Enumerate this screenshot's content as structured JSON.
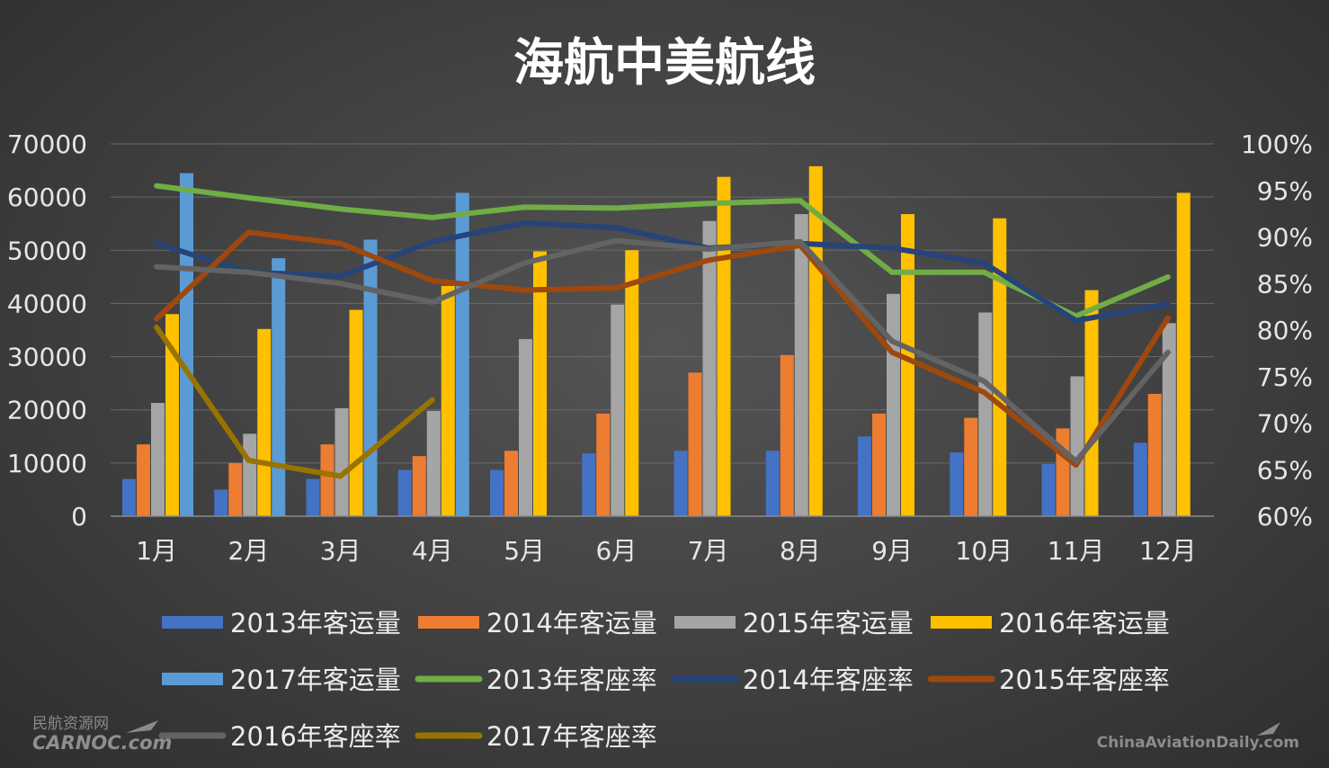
{
  "chart_data": {
    "type": "bar",
    "title": "海航中美航线",
    "categories": [
      "1月",
      "2月",
      "3月",
      "4月",
      "5月",
      "6月",
      "7月",
      "8月",
      "9月",
      "10月",
      "11月",
      "12月"
    ],
    "y_left": {
      "ylim": [
        0,
        70000
      ],
      "ticks": [
        "0",
        "10000",
        "20000",
        "30000",
        "40000",
        "50000",
        "60000",
        "70000"
      ]
    },
    "y_right": {
      "ylim": [
        0.6,
        1.0
      ],
      "ticks": [
        "60%",
        "65%",
        "70%",
        "75%",
        "80%",
        "85%",
        "90%",
        "95%",
        "100%"
      ]
    },
    "bar_series": [
      {
        "name": "2013年客运量",
        "color": "#4472c4",
        "values": [
          7000,
          5000,
          7000,
          8700,
          8700,
          11800,
          12300,
          12300,
          15000,
          12000,
          9800,
          13800
        ]
      },
      {
        "name": "2014年客运量",
        "color": "#ed7d31",
        "values": [
          13500,
          10000,
          13500,
          11300,
          12300,
          19300,
          27000,
          30300,
          19300,
          18500,
          16500,
          23000
        ]
      },
      {
        "name": "2015年客运量",
        "color": "#a5a5a5",
        "values": [
          21300,
          15500,
          20300,
          19800,
          33300,
          39800,
          55500,
          56800,
          41800,
          38300,
          26300,
          36300
        ]
      },
      {
        "name": "2016年客运量",
        "color": "#ffc000",
        "values": [
          38000,
          35200,
          38800,
          43300,
          49800,
          50000,
          63800,
          65800,
          56800,
          56000,
          42500,
          60800
        ]
      },
      {
        "name": "2017年客运量",
        "color": "#5b9bd5",
        "values": [
          64500,
          48500,
          52000,
          60800,
          null,
          null,
          null,
          null,
          null,
          null,
          null,
          null
        ]
      }
    ],
    "line_series": [
      {
        "name": "2013年客座率",
        "color": "#70ad47",
        "values": [
          0.955,
          0.942,
          0.93,
          0.921,
          0.932,
          0.931,
          0.936,
          0.939,
          0.862,
          0.862,
          0.815,
          0.857
        ]
      },
      {
        "name": "2014年客座率",
        "color": "#264478",
        "values": [
          0.893,
          0.862,
          0.858,
          0.895,
          0.915,
          0.91,
          0.888,
          0.893,
          0.888,
          0.872,
          0.81,
          0.828
        ]
      },
      {
        "name": "2015年客座率",
        "color": "#9e480e",
        "values": [
          0.812,
          0.905,
          0.893,
          0.853,
          0.843,
          0.845,
          0.875,
          0.891,
          0.776,
          0.733,
          0.655,
          0.813
        ]
      },
      {
        "name": "2016年客座率",
        "color": "#636363",
        "values": [
          0.868,
          0.862,
          0.85,
          0.83,
          0.872,
          0.896,
          0.887,
          0.895,
          0.788,
          0.745,
          0.659,
          0.776
        ]
      },
      {
        "name": "2017年客座率",
        "color": "#997300",
        "values": [
          0.803,
          0.66,
          0.643,
          0.725,
          null,
          null,
          null,
          null,
          null,
          null,
          null,
          null
        ]
      }
    ]
  },
  "watermarks": {
    "left_top": "民航资源网",
    "left_bottom": "CARNOC.com",
    "right": "ChinaAviationDaily.com"
  }
}
